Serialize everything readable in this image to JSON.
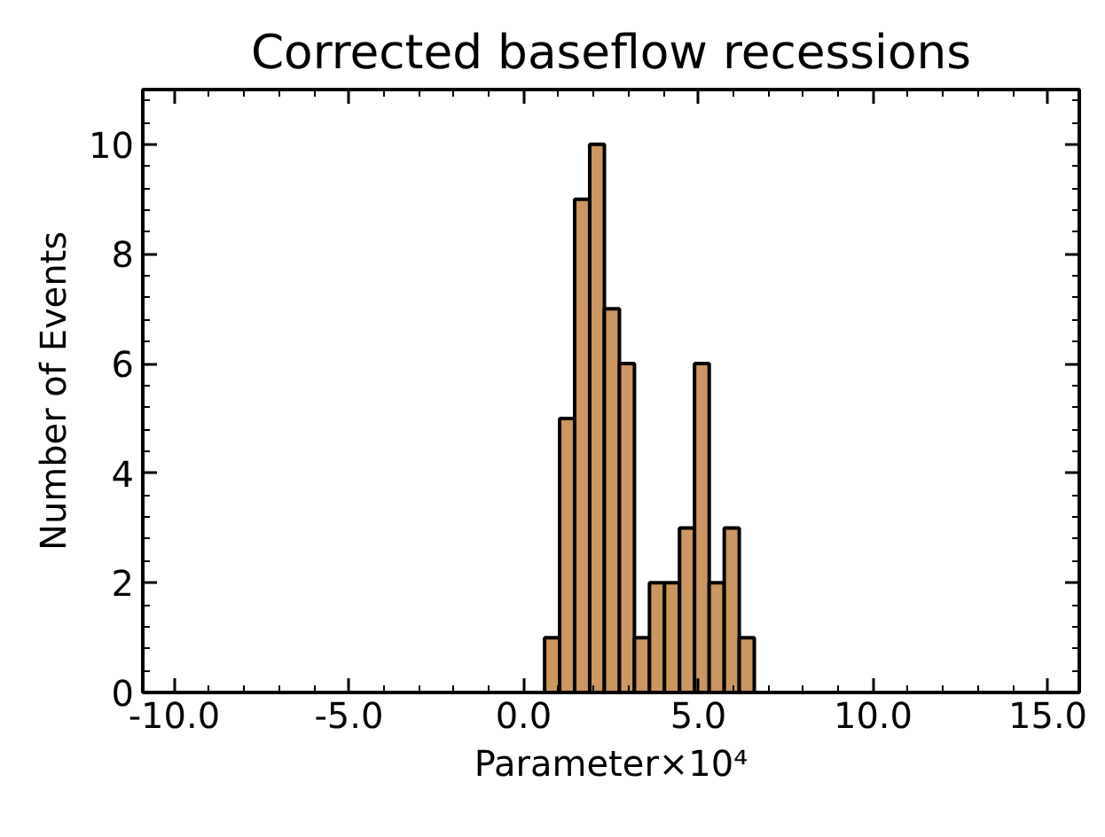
{
  "chart_data": {
    "type": "histogram",
    "title": "Corrected baseflow recessions",
    "xlabel": "Parameter×10⁴",
    "ylabel": "Number of Events",
    "bins": [
      0.6,
      1.03,
      1.46,
      1.89,
      2.31,
      2.74,
      3.17,
      3.6,
      4.03,
      4.46,
      4.89,
      5.31,
      5.74,
      6.17,
      6.6
    ],
    "values": [
      1,
      5,
      9,
      10,
      7,
      6,
      1,
      2,
      2,
      3,
      6,
      2,
      3,
      1
    ],
    "color": "#cd955f",
    "xlim": [
      -10.9,
      15.9
    ],
    "ylim": [
      0,
      11
    ],
    "xticks": [
      {
        "value": -10,
        "label": "-10.0"
      },
      {
        "value": -5,
        "label": "-5.0"
      },
      {
        "value": 0,
        "label": "0.0"
      },
      {
        "value": 5,
        "label": "5.0"
      },
      {
        "value": 10,
        "label": "10.0"
      },
      {
        "value": 15,
        "label": "15.0"
      }
    ],
    "yticks": [
      0,
      2,
      4,
      6,
      8,
      10
    ],
    "grid": false
  }
}
